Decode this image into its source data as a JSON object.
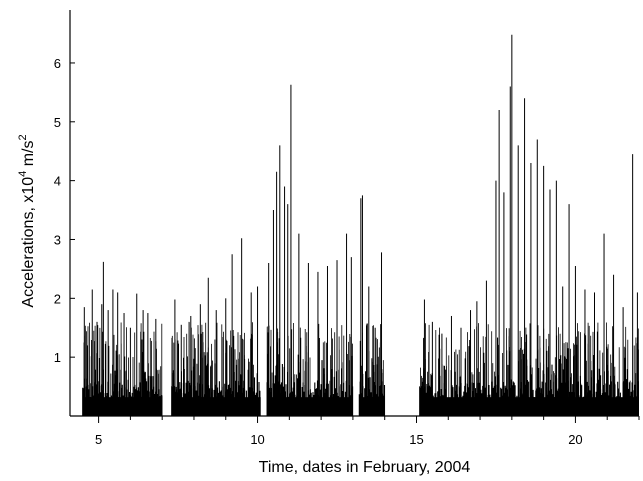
{
  "chart_data": {
    "type": "bar",
    "title": "",
    "xlabel": "Time, dates in February, 2004",
    "ylabel_parts": [
      "Accelerations, x10",
      "4",
      " m/s",
      "2"
    ],
    "x_ticks": [
      5,
      10,
      15,
      20
    ],
    "y_ticks": [
      1,
      2,
      3,
      4,
      5,
      6
    ],
    "xlim": [
      4.1,
      22.0
    ],
    "ylim": [
      0,
      6.9
    ],
    "grid": false,
    "legend": "none",
    "color": "#000000",
    "recording_intervals": [
      [
        4.5,
        7.0
      ],
      [
        7.3,
        10.1
      ],
      [
        10.3,
        13.0
      ],
      [
        13.2,
        14.0
      ],
      [
        15.1,
        22.0
      ]
    ],
    "series": [
      {
        "values_x_y": [
          [
            4.55,
            1.85
          ],
          [
            4.65,
            1.2
          ],
          [
            4.8,
            2.15
          ],
          [
            4.95,
            1.6
          ],
          [
            5.1,
            1.9
          ],
          [
            5.15,
            2.62
          ],
          [
            5.3,
            1.8
          ],
          [
            5.45,
            2.15
          ],
          [
            5.6,
            2.1
          ],
          [
            5.8,
            1.75
          ],
          [
            6.0,
            1.5
          ],
          [
            6.2,
            2.08
          ],
          [
            6.4,
            1.8
          ],
          [
            6.55,
            1.75
          ],
          [
            6.8,
            1.65
          ],
          [
            7.4,
            1.98
          ],
          [
            7.6,
            1.55
          ],
          [
            7.9,
            1.7
          ],
          [
            8.2,
            1.9
          ],
          [
            8.45,
            2.35
          ],
          [
            8.7,
            1.8
          ],
          [
            9.0,
            2.0
          ],
          [
            9.2,
            2.75
          ],
          [
            9.5,
            3.02
          ],
          [
            9.8,
            2.1
          ],
          [
            10.0,
            2.2
          ],
          [
            10.35,
            2.6
          ],
          [
            10.5,
            3.5
          ],
          [
            10.6,
            4.15
          ],
          [
            10.7,
            4.6
          ],
          [
            10.85,
            3.9
          ],
          [
            10.95,
            3.6
          ],
          [
            11.05,
            5.63
          ],
          [
            11.3,
            3.1
          ],
          [
            11.6,
            2.6
          ],
          [
            11.9,
            2.45
          ],
          [
            12.2,
            2.55
          ],
          [
            12.5,
            2.65
          ],
          [
            12.8,
            3.1
          ],
          [
            12.95,
            2.7
          ],
          [
            13.25,
            3.7
          ],
          [
            13.3,
            3.75
          ],
          [
            13.5,
            2.2
          ],
          [
            13.7,
            1.5
          ],
          [
            13.9,
            2.78
          ],
          [
            15.25,
            1.98
          ],
          [
            15.5,
            1.6
          ],
          [
            15.8,
            1.4
          ],
          [
            16.1,
            1.7
          ],
          [
            16.4,
            1.5
          ],
          [
            16.7,
            1.8
          ],
          [
            16.9,
            1.95
          ],
          [
            17.2,
            2.3
          ],
          [
            17.5,
            4.0
          ],
          [
            17.6,
            5.2
          ],
          [
            17.75,
            3.8
          ],
          [
            17.95,
            5.6
          ],
          [
            18.0,
            6.48
          ],
          [
            18.2,
            4.6
          ],
          [
            18.4,
            5.4
          ],
          [
            18.6,
            4.3
          ],
          [
            18.8,
            4.7
          ],
          [
            19.0,
            4.25
          ],
          [
            19.2,
            3.85
          ],
          [
            19.4,
            4.0
          ],
          [
            19.6,
            2.2
          ],
          [
            19.8,
            3.6
          ],
          [
            20.0,
            2.55
          ],
          [
            20.3,
            2.15
          ],
          [
            20.6,
            2.1
          ],
          [
            20.9,
            3.1
          ],
          [
            21.2,
            2.4
          ],
          [
            21.5,
            1.85
          ],
          [
            21.8,
            4.45
          ],
          [
            21.95,
            2.1
          ]
        ]
      }
    ]
  }
}
